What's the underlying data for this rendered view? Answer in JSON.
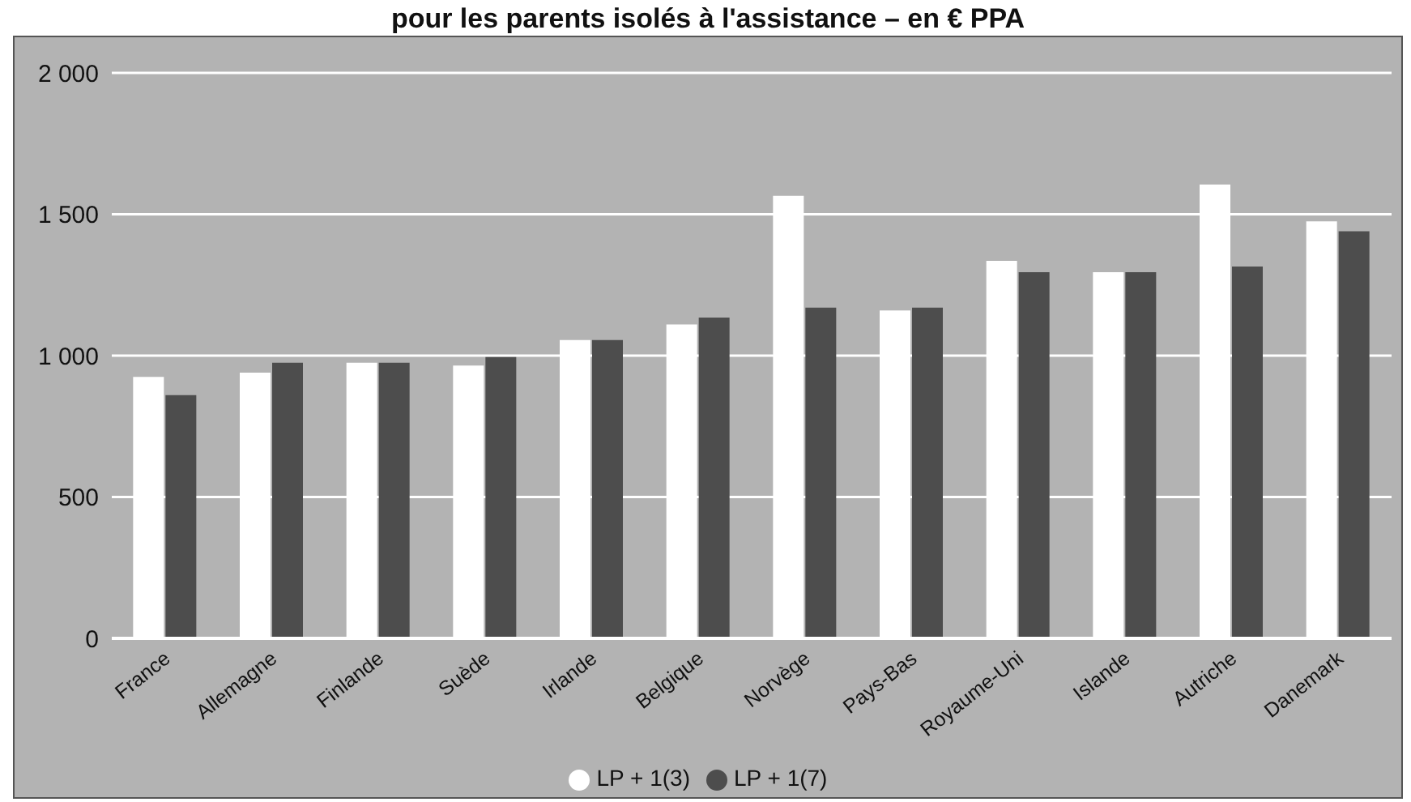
{
  "chart_data": {
    "type": "bar",
    "title": "pour les parents isolés à l'assistance – en € PPA",
    "categories": [
      "France",
      "Allemagne",
      "Finlande",
      "Suède",
      "Irlande",
      "Belgique",
      "Norvège",
      "Pays-Bas",
      "Royaume-Uni",
      "Islande",
      "Autriche",
      "Danemark"
    ],
    "series": [
      {
        "name": "LP + 1(3)",
        "color": "#ffffff",
        "values": [
          925,
          940,
          975,
          965,
          1055,
          1110,
          1565,
          1160,
          1335,
          1295,
          1605,
          1475
        ]
      },
      {
        "name": "LP + 1(7)",
        "color": "#4d4d4d",
        "values": [
          860,
          975,
          975,
          995,
          1055,
          1135,
          1170,
          1170,
          1295,
          1295,
          1315,
          1440
        ]
      }
    ],
    "ylim": [
      0,
      2000
    ],
    "yticks": [
      0,
      500,
      {
        "value": 1000,
        "label": "1 000"
      },
      {
        "value": 1500,
        "label": "1 500"
      },
      {
        "value": 2000,
        "label": "2 000"
      }
    ],
    "grid": "y",
    "legend": "bottom"
  }
}
